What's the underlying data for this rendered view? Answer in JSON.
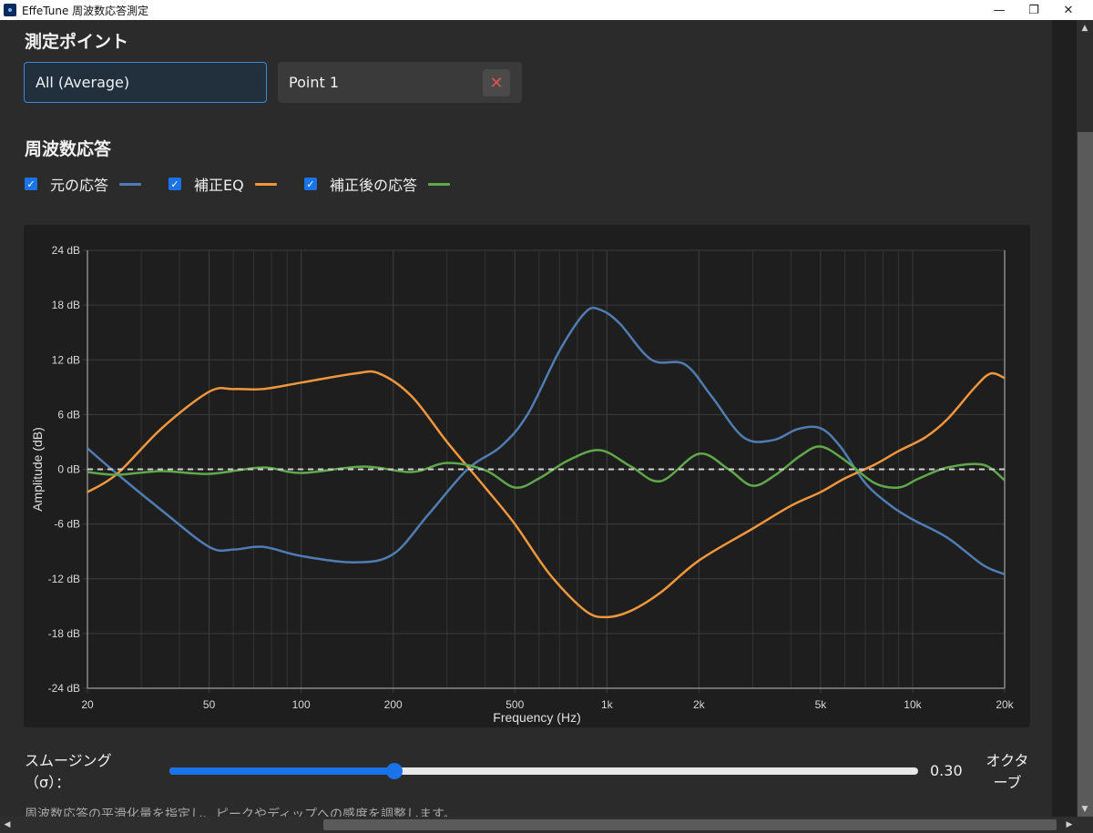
{
  "window": {
    "title": "EffeTune 周波数応答測定",
    "minimize": "—",
    "restore": "❐",
    "close": "✕"
  },
  "points_section": {
    "title": "測定ポイント",
    "tabs": [
      {
        "label": "All (Average)"
      },
      {
        "label": "Point 1"
      }
    ],
    "delete_icon": "✕"
  },
  "response_section": {
    "title": "周波数応答",
    "legend": [
      {
        "label": "元の応答",
        "color": "#4f7db3",
        "checked": true
      },
      {
        "label": "補正EQ",
        "color": "#f0963c",
        "checked": true
      },
      {
        "label": "補正後の応答",
        "color": "#5fa84b",
        "checked": true
      }
    ]
  },
  "chart_data": {
    "type": "line",
    "xlabel": "Frequency (Hz)",
    "ylabel": "Amplitude (dB)",
    "xscale": "log",
    "xlim": [
      20,
      20000
    ],
    "ylim": [
      -24,
      24
    ],
    "xticks": [
      20,
      50,
      100,
      200,
      500,
      1000,
      2000,
      5000,
      10000,
      20000
    ],
    "xtick_labels": [
      "20",
      "50",
      "100",
      "200",
      "500",
      "1k",
      "2k",
      "5k",
      "10k",
      "20k"
    ],
    "yticks": [
      -24,
      -18,
      -12,
      -6,
      0,
      6,
      12,
      18,
      24
    ],
    "ytick_labels": [
      "-24 dB",
      "-18 dB",
      "-12 dB",
      "-6 dB",
      "0 dB",
      "6 dB",
      "12 dB",
      "18 dB",
      "24 dB"
    ],
    "grid": true,
    "reference_line": 0,
    "series": [
      {
        "name": "元の応答",
        "color": "#4f7db3",
        "x": [
          20,
          25,
          35,
          50,
          60,
          75,
          100,
          150,
          200,
          260,
          350,
          450,
          550,
          700,
          850,
          950,
          1100,
          1400,
          1800,
          2200,
          2800,
          3500,
          4200,
          5000,
          5800,
          7000,
          8500,
          10000,
          13000,
          17000,
          20000
        ],
        "y": [
          2.3,
          -0.5,
          -4.5,
          -8.5,
          -8.8,
          -8.5,
          -9.5,
          -10.2,
          -9.3,
          -5.0,
          0.0,
          2.5,
          6.0,
          13.0,
          17.2,
          17.5,
          16.0,
          12.0,
          11.5,
          8.0,
          3.5,
          3.2,
          4.4,
          4.5,
          2.5,
          -1.5,
          -4.0,
          -5.5,
          -7.5,
          -10.5,
          -11.5
        ]
      },
      {
        "name": "補正EQ",
        "color": "#f0963c",
        "x": [
          20,
          25,
          35,
          50,
          60,
          75,
          100,
          150,
          180,
          230,
          300,
          400,
          500,
          650,
          850,
          1000,
          1200,
          1500,
          2000,
          3000,
          4000,
          5000,
          6000,
          7500,
          9000,
          11000,
          13000,
          16000,
          18000,
          20000
        ],
        "y": [
          -2.5,
          -0.5,
          4.5,
          8.5,
          8.8,
          8.8,
          9.5,
          10.5,
          10.5,
          8.0,
          3.0,
          -2.0,
          -6.0,
          -11.5,
          -15.5,
          -16.2,
          -15.5,
          -13.5,
          -10.0,
          -6.5,
          -4.0,
          -2.5,
          -1.0,
          0.5,
          2.0,
          3.5,
          5.5,
          9.0,
          10.5,
          10.0
        ]
      },
      {
        "name": "補正後の応答",
        "color": "#5fa84b",
        "x": [
          20,
          25,
          35,
          50,
          75,
          100,
          160,
          230,
          300,
          400,
          500,
          600,
          750,
          950,
          1200,
          1500,
          2000,
          2500,
          3000,
          3600,
          4300,
          5000,
          6000,
          7500,
          9000,
          10500,
          13000,
          17000,
          20000
        ],
        "y": [
          -0.3,
          -0.6,
          -0.2,
          -0.5,
          0.2,
          -0.4,
          0.3,
          -0.3,
          0.7,
          -0.1,
          -2.0,
          -1.0,
          1.0,
          2.1,
          0.3,
          -1.3,
          1.7,
          0.0,
          -1.8,
          -0.5,
          1.5,
          2.5,
          1.0,
          -1.5,
          -2.0,
          -1.0,
          0.2,
          0.5,
          -1.2
        ]
      }
    ]
  },
  "smoothing": {
    "label_line1": "スムージング",
    "label_line2": "（σ）：",
    "value": 0.3,
    "value_text": "0.30",
    "min": 0,
    "max": 1,
    "unit_line1": "オクタ",
    "unit_line2": "ーブ"
  },
  "help_text": "周波数応答の平滑化量を指定し、ピークやディップへの感度を調整します。",
  "icons": {
    "scroll_up": "▲",
    "scroll_down": "▼",
    "scroll_left": "◀",
    "scroll_right": "▶",
    "check": "✓"
  }
}
